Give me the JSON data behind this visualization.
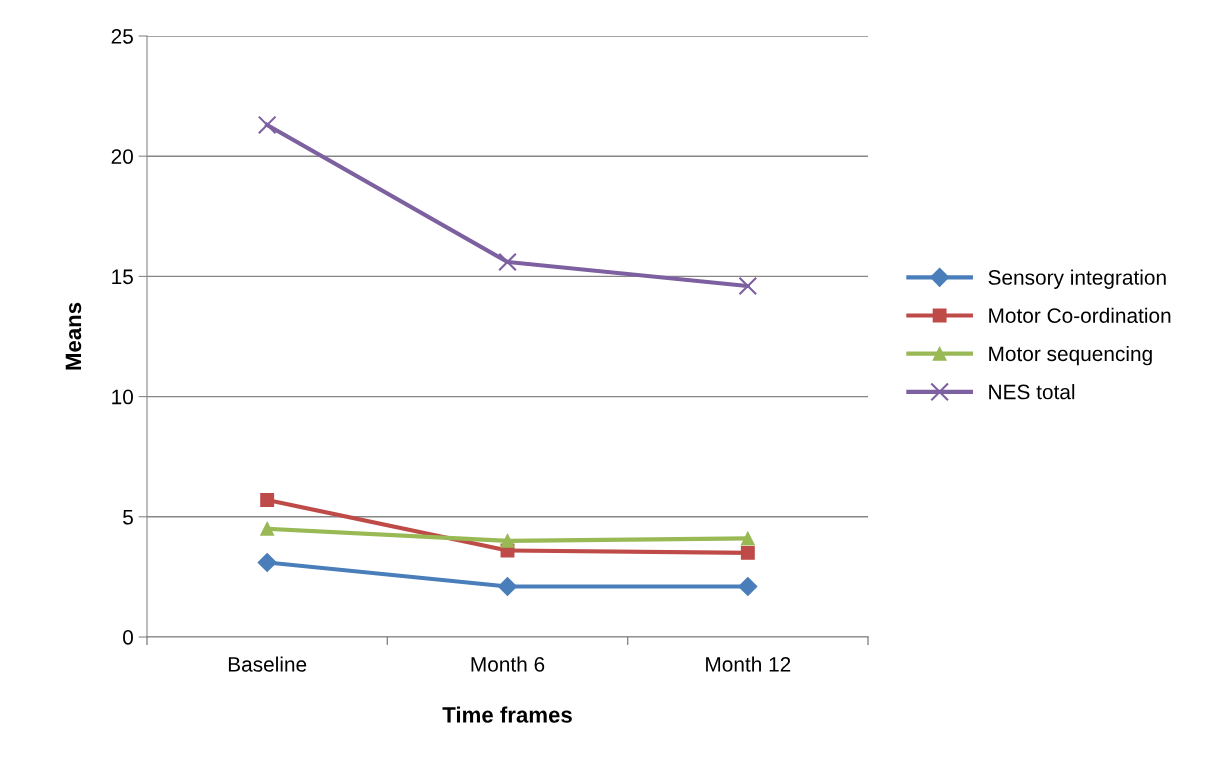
{
  "chart_data": {
    "type": "line",
    "xlabel": "Time frames",
    "ylabel": "Means",
    "categories": [
      "Baseline",
      "Month 6",
      "Month 12"
    ],
    "series": [
      {
        "name": "Sensory integration",
        "color": "#4a7ebb",
        "marker": "diamond",
        "values": [
          3.1,
          2.1,
          2.1
        ]
      },
      {
        "name": "Motor Co-ordination",
        "color": "#be4b48",
        "marker": "square",
        "values": [
          5.7,
          3.6,
          3.5
        ]
      },
      {
        "name": "Motor sequencing",
        "color": "#98b954",
        "marker": "triangle",
        "values": [
          4.5,
          4.0,
          4.1
        ]
      },
      {
        "name": "NES total",
        "color": "#7d60a0",
        "marker": "cross",
        "values": [
          21.3,
          15.6,
          14.6
        ]
      }
    ],
    "ylim": [
      0,
      25
    ],
    "yticks": [
      0,
      5,
      10,
      15,
      20,
      25
    ],
    "grid": "y",
    "legend": "right",
    "line_style": "solid"
  }
}
